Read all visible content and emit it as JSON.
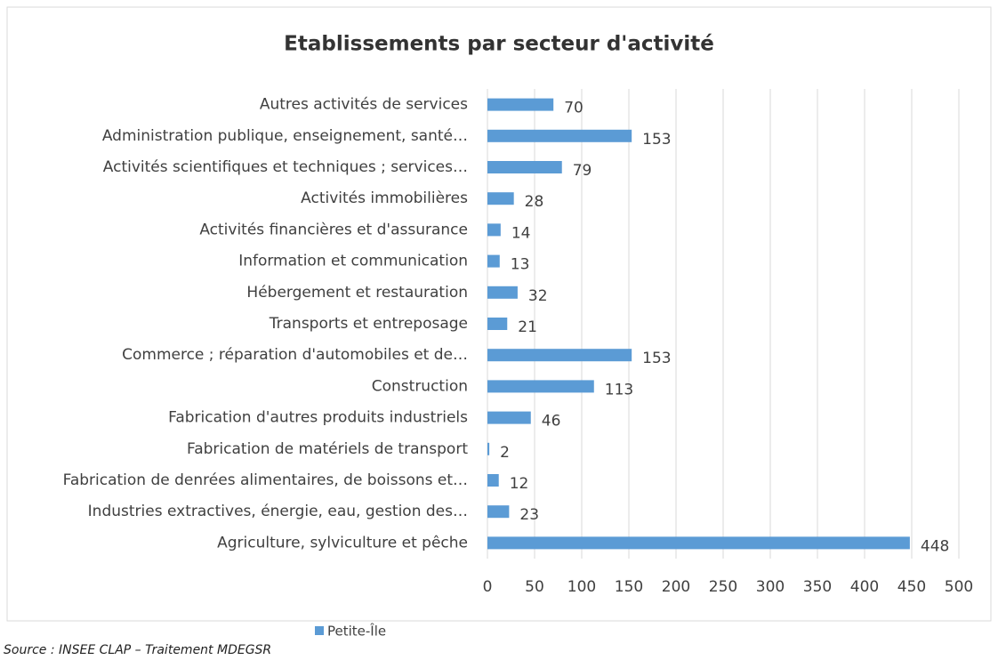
{
  "chart_data": {
    "type": "bar",
    "orientation": "horizontal",
    "title": "Etablissements par secteur d'activité",
    "categories": [
      "Autres activités de services",
      "Administration publique, enseignement, santé…",
      "Activités scientifiques et techniques ; services…",
      "Activités immobilières",
      "Activités financières et d'assurance",
      "Information et communication",
      "Hébergement et restauration",
      "Transports et entreposage",
      "Commerce ; réparation d'automobiles et de…",
      "Construction",
      "Fabrication d'autres produits industriels",
      "Fabrication de matériels de transport",
      "Fabrication de denrées alimentaires, de boissons et…",
      "Industries extractives,  énergie, eau, gestion des…",
      "Agriculture, sylviculture et pêche"
    ],
    "series": [
      {
        "name": "Petite-Île",
        "color": "#5b9bd5",
        "values": [
          70,
          153,
          79,
          28,
          14,
          13,
          32,
          21,
          153,
          113,
          46,
          2,
          12,
          23,
          448
        ]
      }
    ],
    "xlim": [
      0,
      500
    ],
    "xticks": [
      0,
      50,
      100,
      150,
      200,
      250,
      300,
      350,
      400,
      450,
      500
    ],
    "grid": true,
    "legend": "bottom",
    "source": "Source : INSEE CLAP – Traitement MDEGSR"
  }
}
